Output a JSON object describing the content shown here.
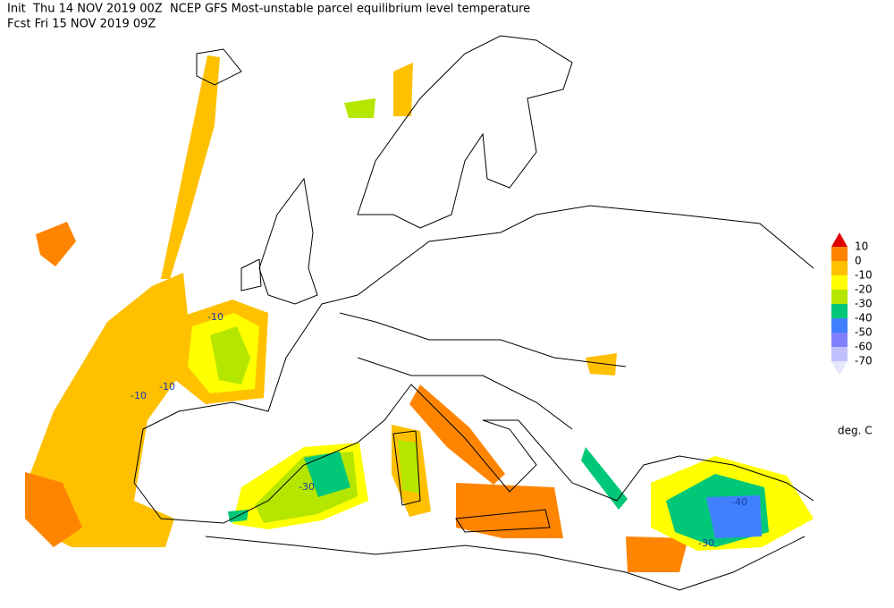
{
  "header": {
    "line1": "Init  Thu 14 NOV 2019 00Z  NCEP GFS Most-unstable parcel equilibrium level temperature",
    "line2": "Fcst Fri 15 NOV 2019 09Z"
  },
  "legend": {
    "labels": [
      10,
      0,
      -10,
      -20,
      -30,
      -40,
      -50,
      -60,
      -70
    ],
    "colors": [
      "#e00000",
      "#ff8400",
      "#ffc000",
      "#ffff00",
      "#b4e600",
      "#00c878",
      "#4080ff",
      "#8080ff",
      "#c0c0ff",
      "#e6e6ff"
    ],
    "unit": "deg. C"
  },
  "contour_labels": [
    -10,
    -10,
    -10,
    -30,
    -40,
    -30
  ]
}
